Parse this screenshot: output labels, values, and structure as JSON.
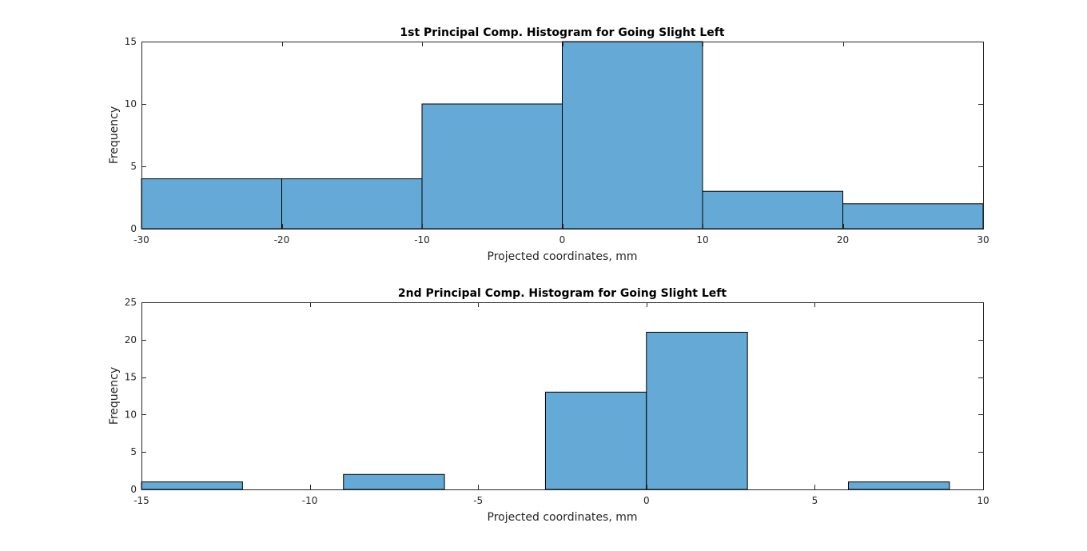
{
  "bar_color": "#65A9D7",
  "chart_data": [
    {
      "type": "bar",
      "title": "1st Principal Comp. Histogram for Going Slight Left",
      "xlabel": "Projected coordinates, mm",
      "ylabel": "Frequency",
      "xlim": [
        -30,
        30
      ],
      "ylim": [
        0,
        15
      ],
      "xticks": [
        -30,
        -20,
        -10,
        0,
        10,
        20,
        30
      ],
      "yticks": [
        0,
        5,
        10,
        15
      ],
      "grid": false,
      "bins": [
        {
          "x0": -30,
          "x1": -20,
          "count": 4
        },
        {
          "x0": -20,
          "x1": -10,
          "count": 4
        },
        {
          "x0": -10,
          "x1": 0,
          "count": 10
        },
        {
          "x0": 0,
          "x1": 10,
          "count": 15
        },
        {
          "x0": 10,
          "x1": 20,
          "count": 3
        },
        {
          "x0": 20,
          "x1": 30,
          "count": 2
        }
      ]
    },
    {
      "type": "bar",
      "title": "2nd Principal Comp. Histogram for Going Slight Left",
      "xlabel": "Projected coordinates, mm",
      "ylabel": "Frequency",
      "xlim": [
        -15,
        10
      ],
      "ylim": [
        0,
        25
      ],
      "xticks": [
        -15,
        -10,
        -5,
        0,
        5,
        10
      ],
      "yticks": [
        0,
        5,
        10,
        15,
        20,
        25
      ],
      "grid": false,
      "bins": [
        {
          "x0": -15,
          "x1": -12,
          "count": 1
        },
        {
          "x0": -12,
          "x1": -9,
          "count": 0
        },
        {
          "x0": -9,
          "x1": -6,
          "count": 2
        },
        {
          "x0": -6,
          "x1": -3,
          "count": 0
        },
        {
          "x0": -3,
          "x1": 0,
          "count": 13
        },
        {
          "x0": 0,
          "x1": 3,
          "count": 21
        },
        {
          "x0": 3,
          "x1": 6,
          "count": 0
        },
        {
          "x0": 6,
          "x1": 9,
          "count": 1
        }
      ]
    }
  ]
}
